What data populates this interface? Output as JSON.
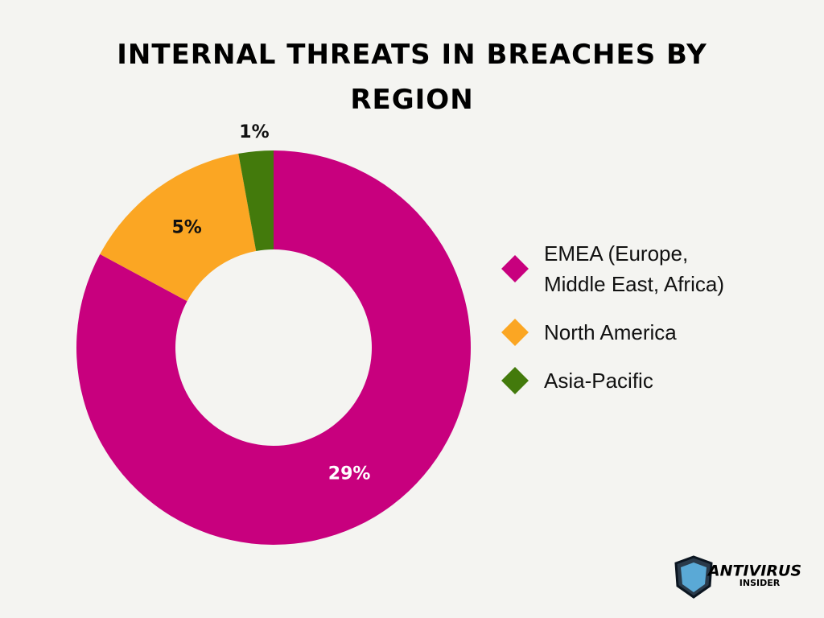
{
  "chart_data": {
    "type": "pie",
    "donut": true,
    "title": "INTERNAL THREATS IN BREACHES BY REGION",
    "categories": [
      "EMEA (Europe, Middle East, Africa)",
      "North America",
      "Asia-Pacific"
    ],
    "values": [
      29,
      5,
      1
    ],
    "value_labels": [
      "29%",
      "5%",
      "1%"
    ],
    "colors": [
      "#c8007e",
      "#fba623",
      "#437a0c"
    ],
    "legend": "right"
  },
  "branding": {
    "name": "ANTIVIRUS",
    "subname": "INSIDER"
  }
}
